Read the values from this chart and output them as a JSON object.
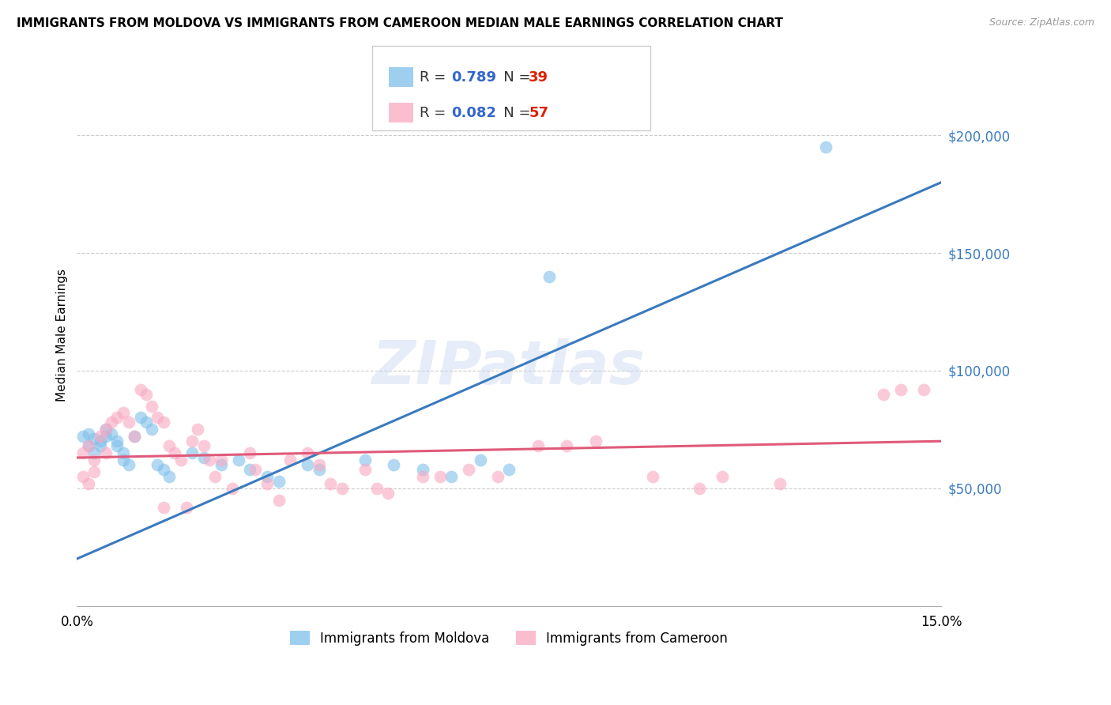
{
  "title": "IMMIGRANTS FROM MOLDOVA VS IMMIGRANTS FROM CAMEROON MEDIAN MALE EARNINGS CORRELATION CHART",
  "source": "Source: ZipAtlas.com",
  "ylabel": "Median Male Earnings",
  "xlim": [
    0.0,
    0.15
  ],
  "ylim": [
    0,
    230000
  ],
  "ytick_values": [
    50000,
    100000,
    150000,
    200000
  ],
  "ytick_labels": [
    "$50,000",
    "$100,000",
    "$150,000",
    "$200,000"
  ],
  "grid_color": "#cccccc",
  "background_color": "#ffffff",
  "moldova_color": "#7fbfea",
  "cameroon_color": "#f9a8c0",
  "moldova_line_color": "#3a7abf",
  "cameroon_line_color": "#e05a7a",
  "moldova_R": 0.789,
  "moldova_N": 39,
  "cameroon_R": 0.082,
  "cameroon_N": 57,
  "legend_R_color": "#3366cc",
  "legend_N_color": "#dd2200",
  "watermark": "ZIPatlas",
  "moldova_line_x0": 0.0,
  "moldova_line_y0": 20000,
  "moldova_line_x1": 0.15,
  "moldova_line_y1": 180000,
  "cameroon_line_x0": 0.0,
  "cameroon_line_y0": 63000,
  "cameroon_line_x1": 0.15,
  "cameroon_line_y1": 70000,
  "moldova_scatter": [
    [
      0.001,
      72000
    ],
    [
      0.002,
      73000
    ],
    [
      0.002,
      68000
    ],
    [
      0.003,
      71000
    ],
    [
      0.003,
      65000
    ],
    [
      0.004,
      70000
    ],
    [
      0.004,
      68000
    ],
    [
      0.005,
      75000
    ],
    [
      0.005,
      72000
    ],
    [
      0.006,
      73000
    ],
    [
      0.007,
      70000
    ],
    [
      0.007,
      68000
    ],
    [
      0.008,
      65000
    ],
    [
      0.008,
      62000
    ],
    [
      0.009,
      60000
    ],
    [
      0.01,
      72000
    ],
    [
      0.011,
      80000
    ],
    [
      0.012,
      78000
    ],
    [
      0.013,
      75000
    ],
    [
      0.014,
      60000
    ],
    [
      0.015,
      58000
    ],
    [
      0.016,
      55000
    ],
    [
      0.02,
      65000
    ],
    [
      0.022,
      63000
    ],
    [
      0.025,
      60000
    ],
    [
      0.028,
      62000
    ],
    [
      0.03,
      58000
    ],
    [
      0.033,
      55000
    ],
    [
      0.035,
      53000
    ],
    [
      0.04,
      60000
    ],
    [
      0.042,
      58000
    ],
    [
      0.05,
      62000
    ],
    [
      0.055,
      60000
    ],
    [
      0.06,
      58000
    ],
    [
      0.065,
      55000
    ],
    [
      0.07,
      62000
    ],
    [
      0.075,
      58000
    ],
    [
      0.082,
      140000
    ],
    [
      0.13,
      195000
    ]
  ],
  "cameroon_scatter": [
    [
      0.001,
      65000
    ],
    [
      0.001,
      55000
    ],
    [
      0.002,
      68000
    ],
    [
      0.002,
      52000
    ],
    [
      0.003,
      62000
    ],
    [
      0.003,
      57000
    ],
    [
      0.004,
      72000
    ],
    [
      0.005,
      75000
    ],
    [
      0.005,
      65000
    ],
    [
      0.006,
      78000
    ],
    [
      0.007,
      80000
    ],
    [
      0.008,
      82000
    ],
    [
      0.009,
      78000
    ],
    [
      0.01,
      72000
    ],
    [
      0.011,
      92000
    ],
    [
      0.012,
      90000
    ],
    [
      0.013,
      85000
    ],
    [
      0.014,
      80000
    ],
    [
      0.015,
      78000
    ],
    [
      0.015,
      42000
    ],
    [
      0.016,
      68000
    ],
    [
      0.017,
      65000
    ],
    [
      0.018,
      62000
    ],
    [
      0.019,
      42000
    ],
    [
      0.02,
      70000
    ],
    [
      0.021,
      75000
    ],
    [
      0.022,
      68000
    ],
    [
      0.023,
      62000
    ],
    [
      0.024,
      55000
    ],
    [
      0.025,
      62000
    ],
    [
      0.027,
      50000
    ],
    [
      0.03,
      65000
    ],
    [
      0.031,
      58000
    ],
    [
      0.033,
      52000
    ],
    [
      0.035,
      45000
    ],
    [
      0.037,
      62000
    ],
    [
      0.04,
      65000
    ],
    [
      0.042,
      60000
    ],
    [
      0.044,
      52000
    ],
    [
      0.046,
      50000
    ],
    [
      0.05,
      58000
    ],
    [
      0.052,
      50000
    ],
    [
      0.054,
      48000
    ],
    [
      0.06,
      55000
    ],
    [
      0.063,
      55000
    ],
    [
      0.068,
      58000
    ],
    [
      0.073,
      55000
    ],
    [
      0.08,
      68000
    ],
    [
      0.085,
      68000
    ],
    [
      0.09,
      70000
    ],
    [
      0.1,
      55000
    ],
    [
      0.108,
      50000
    ],
    [
      0.112,
      55000
    ],
    [
      0.122,
      52000
    ],
    [
      0.14,
      90000
    ],
    [
      0.143,
      92000
    ],
    [
      0.147,
      92000
    ]
  ]
}
